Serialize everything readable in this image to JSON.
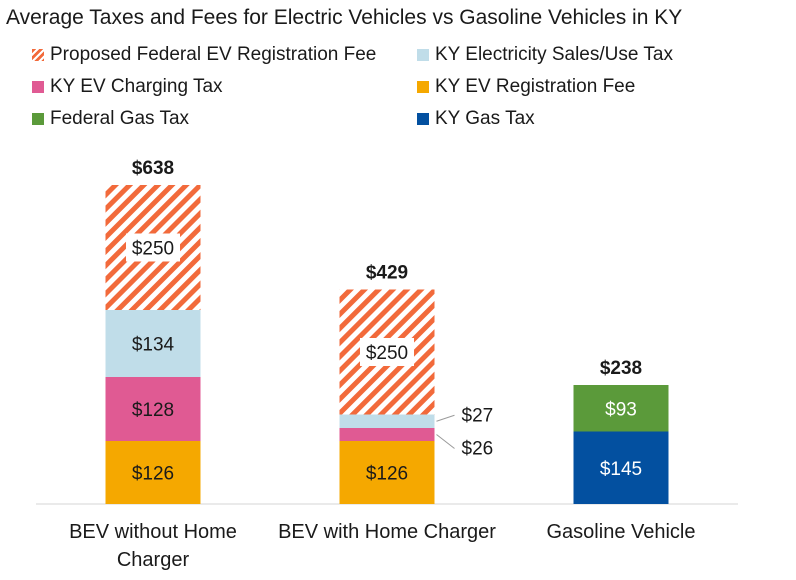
{
  "chart_data": {
    "type": "bar",
    "stacked": true,
    "title": "Average Taxes and Fees for Electric Vehicles vs Gasoline Vehicles in KY",
    "categories": [
      "BEV without Home Charger",
      "BEV with Home Charger",
      "Gasoline Vehicle"
    ],
    "totals": [
      "$638",
      "$429",
      "$238"
    ],
    "legend_order": [
      "Proposed Federal EV Registration Fee",
      "KY Electricity Sales/Use Tax",
      "KY EV Charging Tax",
      "KY EV Registration Fee",
      "Federal Gas Tax",
      "KY Gas Tax"
    ],
    "series": [
      {
        "name": "KY EV Registration Fee",
        "color": "#f5a800",
        "pattern": "solid",
        "values": [
          126,
          126,
          0
        ],
        "labels": [
          "$126",
          "$126",
          ""
        ]
      },
      {
        "name": "KY EV Charging Tax",
        "color": "#e05a93",
        "pattern": "solid",
        "values": [
          128,
          26,
          0
        ],
        "labels": [
          "$128",
          "$26",
          ""
        ]
      },
      {
        "name": "KY Electricity Sales/Use Tax",
        "color": "#c0dde9",
        "pattern": "solid",
        "values": [
          134,
          27,
          0
        ],
        "labels": [
          "$134",
          "$27",
          ""
        ]
      },
      {
        "name": "Proposed Federal EV Registration Fee",
        "color": "#f26a3b",
        "pattern": "hatched",
        "values": [
          250,
          250,
          0
        ],
        "labels": [
          "$250",
          "$250",
          ""
        ]
      },
      {
        "name": "KY Gas Tax",
        "color": "#0350a0",
        "pattern": "solid",
        "values": [
          0,
          0,
          145
        ],
        "labels": [
          "",
          "",
          "$145"
        ]
      },
      {
        "name": "Federal Gas Tax",
        "color": "#5b9a3a",
        "pattern": "solid",
        "values": [
          0,
          0,
          93
        ],
        "labels": [
          "",
          "",
          "$93"
        ]
      }
    ],
    "ylim": [
      0,
      700
    ],
    "grid": false,
    "legend_position": "top"
  }
}
